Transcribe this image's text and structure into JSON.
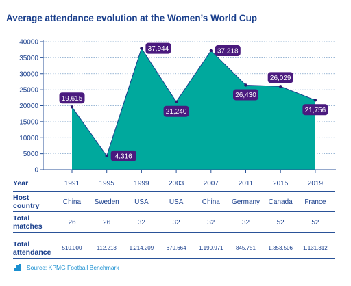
{
  "title": "Average attendance evolution at the Women’s World Cup",
  "chart_data": {
    "type": "area",
    "x": [
      "1991",
      "1995",
      "1999",
      "2003",
      "2007",
      "2011",
      "2015",
      "2019"
    ],
    "values": [
      19615,
      4316,
      37944,
      21240,
      37218,
      26430,
      26029,
      21756
    ],
    "labels": [
      "19,615",
      "4,316",
      "37,944",
      "21,240",
      "37,218",
      "26,430",
      "26,029",
      "21,756"
    ],
    "ylim": [
      0,
      40000
    ],
    "yticks": [
      0,
      5000,
      10000,
      15000,
      20000,
      25000,
      30000,
      35000,
      40000
    ],
    "ytick_labels": [
      "0",
      "5000",
      "10000",
      "15000",
      "20000",
      "25000",
      "30000",
      "35000",
      "40000"
    ],
    "grid": true,
    "fill_color": "#00a99d",
    "label_color": "#4a1a7e"
  },
  "table": {
    "year_label": "Year",
    "host_label": "Host\ncountry",
    "matches_label": "Total\nmatches",
    "attendance_label": "Total\nattendance",
    "years": [
      "1991",
      "1995",
      "1999",
      "2003",
      "2007",
      "2011",
      "2015",
      "2019"
    ],
    "hosts": [
      "China",
      "Sweden",
      "USA",
      "USA",
      "China",
      "Germany",
      "Canada",
      "France"
    ],
    "matches": [
      "26",
      "26",
      "32",
      "32",
      "32",
      "32",
      "52",
      "52"
    ],
    "attendance": [
      "510,000",
      "112,213",
      "1,214,209",
      "679,664",
      "1,190,971",
      "845,751",
      "1,353,506",
      "1,131,312"
    ]
  },
  "source": "Source: KPMG Football Benchmark",
  "colors": {
    "title": "#1a3f8c",
    "rule": "#2a5298",
    "source": "#1a8fd0"
  }
}
